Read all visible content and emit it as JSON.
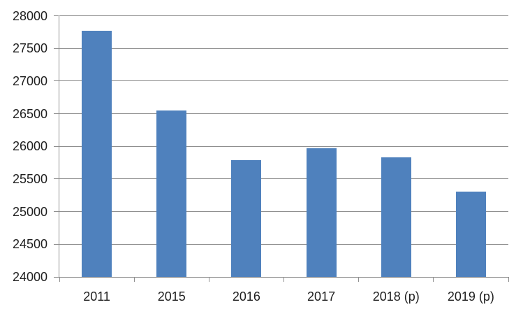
{
  "chart_data": {
    "type": "bar",
    "categories": [
      "2011",
      "2015",
      "2016",
      "2017",
      "2018 (p)",
      "2019 (p)"
    ],
    "values": [
      27770,
      26550,
      25790,
      25970,
      25830,
      25310
    ],
    "ylim": [
      24000,
      28000
    ],
    "ytick_step": 500,
    "ytick_labels": [
      "24000",
      "24500",
      "25000",
      "25500",
      "26000",
      "26500",
      "27000",
      "27500",
      "28000"
    ],
    "grid": true,
    "legend": false,
    "colors": {
      "bar": "#4f81bd",
      "gridline": "#8f8f8f",
      "axis": "#8f8f8f",
      "text": "#1f1f1f",
      "background": "#ffffff"
    }
  }
}
